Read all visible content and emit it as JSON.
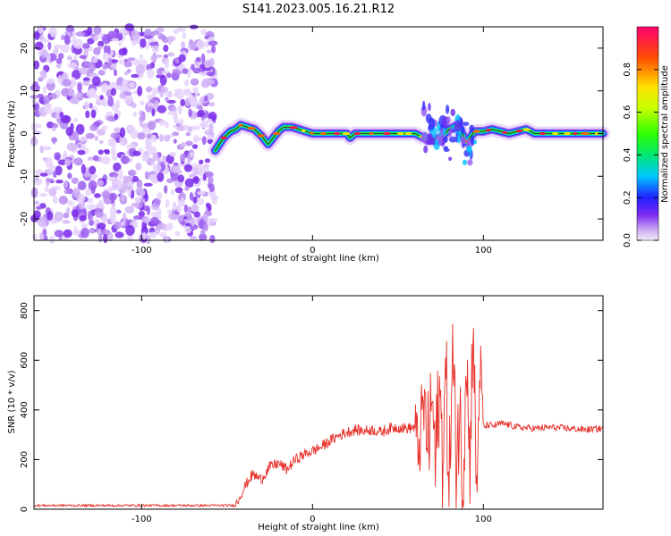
{
  "title": "S141.2023.005.16.21.R12",
  "chart_data": [
    {
      "type": "heatmap",
      "xlabel": "Height of straight line (km)",
      "ylabel": "Frequency (Hz)",
      "xlim": [
        -163,
        170
      ],
      "ylim": [
        -25,
        25
      ],
      "xticks": [
        -100,
        0,
        100
      ],
      "yticks": [
        -20,
        -10,
        0,
        10,
        20
      ],
      "colorbar": {
        "label": "Normalized spectral amplitude",
        "range": [
          0,
          1
        ],
        "ticks": [
          0.0,
          0.2,
          0.4,
          0.6,
          0.8
        ],
        "tick_labels": [
          "0.0",
          "0.2",
          "0.4",
          "0.6",
          "0.8"
        ]
      },
      "noise_region_x": [
        -163,
        -57
      ],
      "ridge_x": [
        -57,
        -52,
        -48,
        -45,
        -42,
        -38,
        -34,
        -30,
        -26,
        -23,
        -20,
        -17,
        -12,
        -8,
        -4,
        0,
        5,
        10,
        15,
        20,
        22,
        25,
        30,
        40,
        50,
        55,
        60,
        65,
        70,
        75,
        80,
        85,
        90,
        95,
        100,
        105,
        110,
        115,
        120,
        125,
        130,
        140,
        150,
        160,
        170
      ],
      "ridge_f": [
        -4,
        -1,
        0.5,
        1,
        2,
        1.5,
        1,
        -0.5,
        -2.5,
        -1,
        0.5,
        1.5,
        1.5,
        1,
        0.5,
        0,
        0,
        0,
        0,
        0,
        -1,
        0,
        0,
        0,
        0,
        0,
        0,
        -1,
        -1.5,
        -1,
        1,
        2,
        -2,
        0.5,
        0.5,
        1,
        0.5,
        0,
        0.5,
        1,
        0,
        0,
        0,
        0,
        0
      ]
    },
    {
      "type": "line",
      "xlabel": "Height of straight line (km)",
      "ylabel": "SNR (10 * v/v)",
      "xlim": [
        -163,
        170
      ],
      "ylim": [
        0,
        860
      ],
      "xticks": [
        -100,
        0,
        100
      ],
      "yticks": [
        0,
        200,
        400,
        600,
        800
      ],
      "color": "#e8302a",
      "series": [
        {
          "x": [
            -163,
            -140,
            -120,
            -100,
            -80,
            -60,
            -45,
            -42,
            -38,
            -35,
            -30,
            -25,
            -20,
            -15,
            -10,
            -5,
            0,
            5,
            10,
            15,
            20,
            25,
            30,
            35,
            40,
            45,
            50,
            55,
            60,
            62,
            65,
            68,
            70,
            72,
            74,
            76,
            78,
            80,
            82,
            84,
            86,
            88,
            90,
            92,
            94,
            96,
            98,
            100,
            103,
            106,
            110,
            115,
            120,
            130,
            140,
            150,
            160,
            170
          ],
          "y": [
            15,
            15,
            15,
            15,
            15,
            15,
            15,
            60,
            110,
            140,
            120,
            170,
            185,
            160,
            200,
            220,
            235,
            250,
            275,
            295,
            310,
            320,
            315,
            320,
            310,
            325,
            330,
            325,
            330,
            230,
            420,
            260,
            460,
            160,
            480,
            250,
            520,
            120,
            610,
            200,
            400,
            60,
            700,
            150,
            800,
            30,
            600,
            330,
            340,
            335,
            345,
            340,
            330,
            325,
            330,
            325,
            320,
            325
          ]
        }
      ]
    }
  ]
}
